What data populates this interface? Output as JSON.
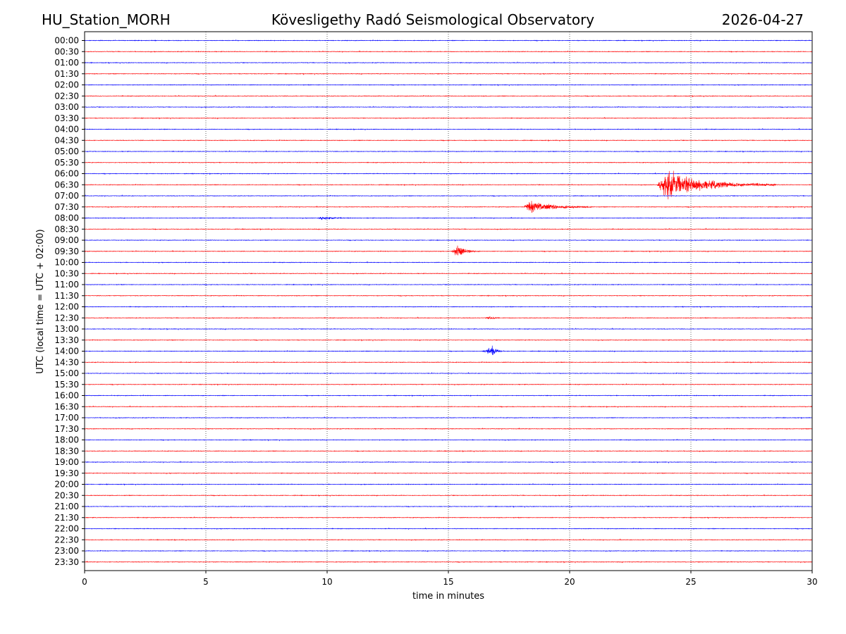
{
  "header": {
    "station": "HU_Station_MORH",
    "observatory": "Kövesligethy Radó Seismological Observatory",
    "date": "2026-04-27"
  },
  "chart_data": {
    "type": "line",
    "title": "Kövesligethy Radó Seismological Observatory",
    "xlabel": "time in minutes",
    "ylabel": "UTC (local time = UTC + 02:00)",
    "xlim": [
      0,
      30
    ],
    "x_ticks": [
      "0",
      "5",
      "10",
      "15",
      "20",
      "25",
      "30"
    ],
    "grid": "vertical dotted at 5, 10, 15, 20, 25",
    "row_labels": [
      "00:00",
      "00:30",
      "01:00",
      "01:30",
      "02:00",
      "02:30",
      "03:00",
      "03:30",
      "04:00",
      "04:30",
      "05:00",
      "05:30",
      "06:00",
      "06:30",
      "07:00",
      "07:30",
      "08:00",
      "08:30",
      "09:00",
      "09:30",
      "10:00",
      "10:30",
      "11:00",
      "11:30",
      "12:00",
      "12:30",
      "13:00",
      "13:30",
      "14:00",
      "14:30",
      "15:00",
      "15:30",
      "16:00",
      "16:30",
      "17:00",
      "17:30",
      "18:00",
      "18:30",
      "19:00",
      "19:30",
      "20:00",
      "20:30",
      "21:00",
      "21:30",
      "22:00",
      "22:30",
      "23:00",
      "23:30"
    ],
    "trace_colors": [
      "#0000ff",
      "#ff0000"
    ],
    "events": [
      {
        "row": "06:30",
        "start_min": 23.6,
        "peak_min": 24.0,
        "end_min": 28.5,
        "amplitude": 1.0
      },
      {
        "row": "07:30",
        "start_min": 18.1,
        "peak_min": 18.4,
        "end_min": 21.0,
        "amplitude": 0.45
      },
      {
        "row": "09:30",
        "start_min": 15.1,
        "peak_min": 15.4,
        "end_min": 16.3,
        "amplitude": 0.4
      },
      {
        "row": "14:00",
        "start_min": 16.4,
        "peak_min": 16.8,
        "end_min": 17.3,
        "amplitude": 0.35
      },
      {
        "row": "08:00",
        "start_min": 9.6,
        "peak_min": 9.8,
        "end_min": 10.9,
        "amplitude": 0.12
      },
      {
        "row": "12:30",
        "start_min": 16.5,
        "peak_min": 16.8,
        "end_min": 17.2,
        "amplitude": 0.1
      }
    ]
  }
}
